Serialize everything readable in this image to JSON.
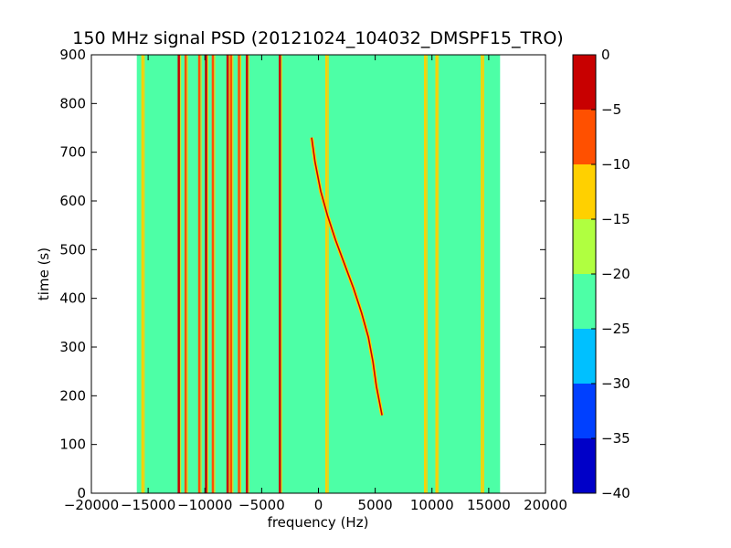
{
  "chart_data": {
    "type": "heatmap",
    "title": "150 MHz signal PSD (20121024_104032_DMSPF15_TRO)",
    "xlabel": "frequency (Hz)",
    "ylabel": "time (s)",
    "xlim": [
      -20000,
      20000
    ],
    "ylim": [
      0,
      900
    ],
    "x_ticks": [
      -20000,
      -15000,
      -10000,
      -5000,
      0,
      5000,
      10000,
      15000,
      20000
    ],
    "y_ticks": [
      0,
      100,
      200,
      300,
      400,
      500,
      600,
      700,
      800,
      900
    ],
    "data_extent": {
      "x": [
        -16000,
        16000
      ],
      "y": [
        0,
        900
      ]
    },
    "background_level_range": [
      -25,
      -20
    ],
    "colorbar": {
      "levels": [
        -40,
        -35,
        -30,
        -25,
        -20,
        -15,
        -10,
        -5,
        0
      ],
      "colors": [
        "#0000c8",
        "#0040ff",
        "#00c0ff",
        "#4dffa6",
        "#b0ff40",
        "#ffd000",
        "#ff5000",
        "#c80000"
      ]
    },
    "vertical_lines": [
      {
        "freq": -15500,
        "level": -15
      },
      {
        "freq": -12300,
        "level": -5
      },
      {
        "freq": -11700,
        "level": -10
      },
      {
        "freq": -10500,
        "level": -10
      },
      {
        "freq": -9900,
        "level": -5
      },
      {
        "freq": -9300,
        "level": -10
      },
      {
        "freq": -8000,
        "level": -5
      },
      {
        "freq": -7700,
        "level": -10
      },
      {
        "freq": -7000,
        "level": -10
      },
      {
        "freq": -6300,
        "level": -5
      },
      {
        "freq": -3400,
        "level": -5
      },
      {
        "freq": 700,
        "level": -15
      },
      {
        "freq": 9400,
        "level": -15
      },
      {
        "freq": 10400,
        "level": -15
      },
      {
        "freq": 14400,
        "level": -15
      }
    ],
    "doppler_curve": {
      "level": -5,
      "points": [
        {
          "time": 730,
          "freq": -600
        },
        {
          "time": 680,
          "freq": -300
        },
        {
          "time": 620,
          "freq": 200
        },
        {
          "time": 570,
          "freq": 800
        },
        {
          "time": 520,
          "freq": 1500
        },
        {
          "time": 470,
          "freq": 2300
        },
        {
          "time": 420,
          "freq": 3100
        },
        {
          "time": 370,
          "freq": 3800
        },
        {
          "time": 320,
          "freq": 4400
        },
        {
          "time": 270,
          "freq": 4800
        },
        {
          "time": 220,
          "freq": 5100
        },
        {
          "time": 160,
          "freq": 5600
        }
      ]
    }
  }
}
